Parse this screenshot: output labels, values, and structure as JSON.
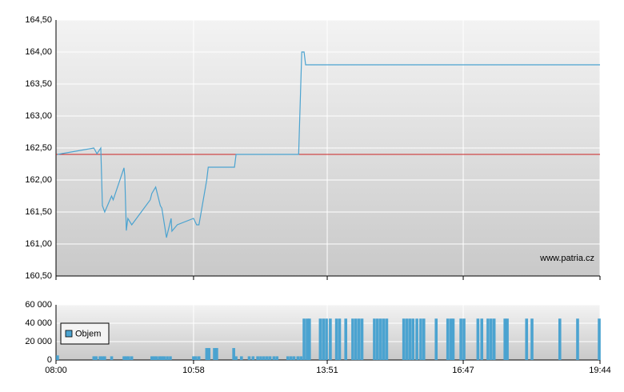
{
  "chart_data": [
    {
      "type": "line",
      "xlim": [
        0,
        704
      ],
      "x": [
        2,
        49,
        53,
        58,
        60,
        63,
        72,
        74,
        88,
        89,
        91,
        93,
        98,
        122,
        124,
        129,
        135,
        137,
        143,
        149,
        150,
        157,
        178,
        182,
        185,
        195,
        197,
        231,
        233,
        314,
        318,
        321,
        323,
        704
      ],
      "values": [
        162.4,
        162.5,
        162.41,
        162.5,
        161.6,
        161.5,
        161.75,
        161.69,
        162.19,
        162.06,
        161.21,
        161.4,
        161.3,
        161.69,
        161.79,
        161.89,
        161.6,
        161.56,
        161.1,
        161.4,
        161.2,
        161.3,
        161.4,
        161.3,
        161.3,
        162.0,
        162.2,
        162.2,
        162.4,
        162.4,
        164.0,
        164.0,
        163.8,
        163.8
      ],
      "color": "#4ba3d0",
      "reference_line": 162.4,
      "reference_color": "#cc2222",
      "ylim": [
        160.5,
        164.5
      ],
      "yticks": [
        {
          "value": 160.5,
          "label": "160,50"
        },
        {
          "value": 161,
          "label": "161,00"
        },
        {
          "value": 161.5,
          "label": "161,50"
        },
        {
          "value": 162,
          "label": "162,00"
        },
        {
          "value": 162.5,
          "label": "162,50"
        },
        {
          "value": 163,
          "label": "163,00"
        },
        {
          "value": 163.5,
          "label": "163,50"
        },
        {
          "value": 164,
          "label": "164,00"
        },
        {
          "value": 164.5,
          "label": "164,50"
        }
      ],
      "grid": true,
      "watermark": "www.patria.cz"
    },
    {
      "type": "bar",
      "xlim": [
        0,
        704
      ],
      "xticks": [
        {
          "value": 0,
          "label": "08:00"
        },
        {
          "value": 178,
          "label": "10:58"
        },
        {
          "value": 351,
          "label": "13:51"
        },
        {
          "value": 527,
          "label": "16:47"
        },
        {
          "value": 704,
          "label": "19:44"
        }
      ],
      "ylim": [
        0,
        60000
      ],
      "yticks": [
        0,
        {
          "value": 20000,
          "label": "20 000"
        },
        {
          "value": 40000,
          "label": "40 000"
        },
        {
          "value": 60000,
          "label": "60 000"
        }
      ],
      "grid": true,
      "legend": "top-left",
      "series": [
        {
          "name": "Objem",
          "color": "#4ba3d0",
          "x": [
            2,
            49,
            52,
            57,
            60,
            63,
            72,
            88,
            91,
            94,
            98,
            124,
            127,
            130,
            134,
            137,
            140,
            144,
            148,
            178,
            181,
            185,
            195,
            198,
            205,
            208,
            230,
            233,
            240,
            250,
            255,
            261,
            265,
            269,
            273,
            277,
            282,
            286,
            300,
            304,
            308,
            313,
            317,
            321,
            325,
            328,
            342,
            346,
            350,
            355,
            363,
            367,
            375,
            384,
            388,
            392,
            396,
            412,
            416,
            420,
            424,
            428,
            450,
            454,
            458,
            462,
            467,
            472,
            476,
            492,
            507,
            511,
            514,
            524,
            528,
            546,
            551,
            559,
            563,
            567,
            581,
            584,
            609,
            616,
            652,
            675,
            703
          ],
          "values": [
            5000,
            4000,
            4000,
            4000,
            4000,
            4000,
            4000,
            4000,
            4000,
            4000,
            4000,
            4000,
            4000,
            4000,
            4000,
            4000,
            4000,
            4000,
            4000,
            4000,
            4000,
            4000,
            13000,
            13000,
            13000,
            13000,
            13000,
            4000,
            4000,
            4000,
            4000,
            4000,
            4000,
            4000,
            4000,
            4000,
            4000,
            4000,
            4000,
            4000,
            4000,
            4000,
            4000,
            45000,
            45000,
            45000,
            45000,
            45000,
            45000,
            45000,
            45000,
            45000,
            45000,
            45000,
            45000,
            45000,
            45000,
            45000,
            45000,
            45000,
            45000,
            45000,
            45000,
            45000,
            45000,
            45000,
            45000,
            45000,
            45000,
            45000,
            45000,
            45000,
            45000,
            45000,
            45000,
            45000,
            45000,
            45000,
            45000,
            45000,
            45000,
            45000,
            45000,
            45000,
            45000,
            45000,
            45000
          ]
        }
      ]
    }
  ]
}
